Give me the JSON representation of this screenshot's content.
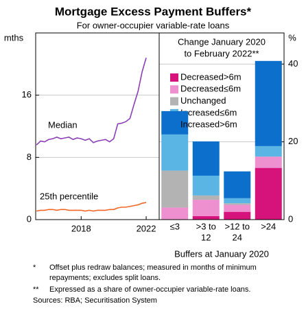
{
  "figure": {
    "title": "Mortgage Excess Payment Buffers*",
    "subtitle": "For owner-occupier variable-rate loans"
  },
  "chart_data": [
    {
      "type": "line",
      "ylabel": "mths",
      "x": [
        2015.25,
        2015.5,
        2015.75,
        2016.0,
        2016.25,
        2016.5,
        2016.75,
        2017.0,
        2017.25,
        2017.5,
        2017.75,
        2018.0,
        2018.25,
        2018.5,
        2018.75,
        2019.0,
        2019.25,
        2019.5,
        2019.75,
        2020.0,
        2020.25,
        2020.5,
        2020.75,
        2021.0,
        2021.25,
        2021.5,
        2021.75,
        2022.0
      ],
      "xlim": [
        2015.2,
        2022.8
      ],
      "xticks": [
        2018,
        2022
      ],
      "ylim": [
        0,
        24
      ],
      "yticks": [
        0,
        8,
        16
      ],
      "grid": true,
      "series": [
        {
          "name": "Median",
          "color": "#8b3fb5",
          "values": [
            9.6,
            10.1,
            10.0,
            10.3,
            10.4,
            10.6,
            10.4,
            10.5,
            10.6,
            10.3,
            10.5,
            10.4,
            10.2,
            10.4,
            9.9,
            10.1,
            10.2,
            10.3,
            10.0,
            10.4,
            12.3,
            12.4,
            12.6,
            13.0,
            14.8,
            16.5,
            19.0,
            20.8
          ]
        },
        {
          "name": "25th percentile",
          "color": "#f26522",
          "values": [
            1.1,
            1.2,
            1.2,
            1.3,
            1.3,
            1.2,
            1.3,
            1.3,
            1.2,
            1.2,
            1.2,
            1.2,
            1.1,
            1.2,
            1.1,
            1.2,
            1.2,
            1.2,
            1.3,
            1.3,
            1.5,
            1.6,
            1.6,
            1.7,
            1.8,
            1.9,
            2.1,
            2.2
          ]
        }
      ]
    },
    {
      "type": "stacked_bar",
      "title": [
        "Change January 2020",
        "to February 2022**"
      ],
      "ylabel": "%",
      "xlabel": "Buffers at January 2020",
      "categories": [
        [
          "≤3"
        ],
        [
          ">3 to",
          "12"
        ],
        [
          ">12 to",
          "24"
        ],
        [
          ">24"
        ]
      ],
      "ylim": [
        0,
        48
      ],
      "yticks": [
        0,
        20,
        40
      ],
      "grid": true,
      "series": [
        {
          "name": "Decreased>6m",
          "color": "#d6127b",
          "values": [
            0,
            0.9,
            2.0,
            13.3
          ]
        },
        {
          "name": "Decreased≤6m",
          "color": "#ee8fd0",
          "values": [
            3.1,
            4.2,
            1.8,
            2.9
          ]
        },
        {
          "name": "Unchanged",
          "color": "#b3b3b3",
          "values": [
            9.5,
            1.1,
            0.4,
            0
          ]
        },
        {
          "name": "Increased≤6m",
          "color": "#5bb5e4",
          "values": [
            9.3,
            5.1,
            1.3,
            2.7
          ]
        },
        {
          "name": "Increased>6m",
          "color": "#0b6fcb",
          "values": [
            6.0,
            8.8,
            6.9,
            21.9
          ]
        }
      ]
    }
  ],
  "footnotes": [
    {
      "mark": "*",
      "lines": [
        "Offset plus redraw balances; measured in months of minimum",
        "repayments; excludes split loans."
      ]
    },
    {
      "mark": "**",
      "lines": [
        "Expressed as a share of owner-occupier variable-rate loans."
      ]
    }
  ],
  "source": "Sources: RBA; Securitisation System"
}
